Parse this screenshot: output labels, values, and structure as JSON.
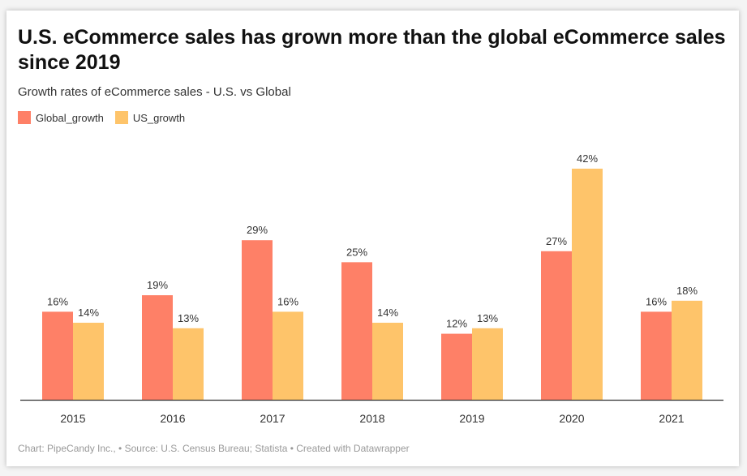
{
  "chart_data": {
    "type": "bar",
    "title": "U.S. eCommerce sales has grown more than the global eCommerce sales since 2019",
    "subtitle": "Growth rates of eCommerce sales - U.S. vs Global",
    "categories": [
      "2015",
      "2016",
      "2017",
      "2018",
      "2019",
      "2020",
      "2021"
    ],
    "series": [
      {
        "name": "Global_growth",
        "color": "#fe8067",
        "values": [
          16,
          19,
          29,
          25,
          12,
          27,
          16
        ]
      },
      {
        "name": "US_growth",
        "color": "#fec46a",
        "values": [
          14,
          13,
          16,
          14,
          13,
          42,
          18
        ]
      }
    ],
    "value_suffix": "%",
    "ylim": [
      0,
      42
    ],
    "grid": false,
    "legend": "top-left",
    "footer": "Chart: PipeCandy Inc., • Source: U.S. Census Bureau; Statista • Created with Datawrapper"
  }
}
